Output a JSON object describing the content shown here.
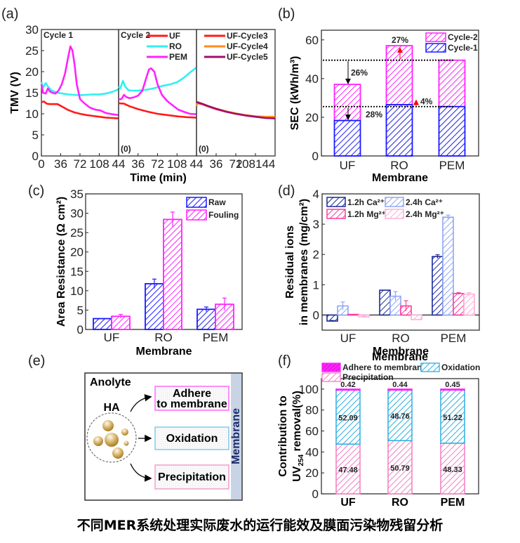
{
  "caption": "不同MER系统处理实际废水的运行能效及膜面污染物残留分析",
  "colors": {
    "uf": "#ff1a1a",
    "ro": "#33f0f0",
    "pem": "#ff22ff",
    "cycle3": "#ff1a1a",
    "cycle4": "#ff8c1a",
    "cycle5": "#a0106a",
    "blue": "#1a1aff",
    "magenta": "#ff22ff",
    "navy": "#1a2a9a",
    "light_blue": "#8fa6f5",
    "pink": "#ff3c9c",
    "light_pink": "#ffb0d8",
    "cyan": "#2eaee0",
    "prec_pink": "#f47cc0",
    "red": "#ff0000"
  },
  "chart_data": [
    {
      "panel": "(a)",
      "type": "line",
      "xlabel": "Time (min)",
      "ylabel": "TMV (V)",
      "ylim": [
        0,
        30
      ],
      "yticks": [
        "0",
        "5",
        "10",
        "15",
        "20",
        "25",
        "30"
      ],
      "subpanels": [
        {
          "title": "Cycle 1",
          "xticks": [
            "0",
            "36",
            "72",
            "108"
          ],
          "xlim": [
            0,
            144
          ],
          "series": [
            {
              "name": "UF",
              "x": [
                0,
                5,
                10,
                15,
                20,
                30,
                40,
                50,
                60,
                72,
                84,
                96,
                108,
                120,
                132,
                144
              ],
              "y": [
                12.8,
                12.9,
                12.4,
                12.3,
                12.3,
                12.3,
                11.6,
                10.9,
                10.4,
                10.0,
                9.7,
                9.5,
                9.3,
                9.1,
                9.0,
                8.9
              ]
            },
            {
              "name": "RO",
              "x": [
                0,
                3,
                8,
                12,
                18,
                24,
                30,
                40,
                50,
                60,
                72,
                84,
                96,
                108,
                120,
                132,
                144
              ],
              "y": [
                17.5,
                16.2,
                17.3,
                16.5,
                15.6,
                15.3,
                15.0,
                14.8,
                14.6,
                14.5,
                14.4,
                14.5,
                14.6,
                14.6,
                14.8,
                15.2,
                15.8
              ]
            },
            {
              "name": "PEM",
              "x": [
                0,
                3,
                8,
                12,
                16,
                20,
                26,
                32,
                38,
                44,
                50,
                54,
                58,
                62,
                66,
                72,
                80,
                90,
                100,
                110,
                120,
                132,
                144
              ],
              "y": [
                17.0,
                15.0,
                14.8,
                16.0,
                15.3,
                15.0,
                14.8,
                15.5,
                17.0,
                19.5,
                23.5,
                26.0,
                25.0,
                21.5,
                17.0,
                13.5,
                12.5,
                11.5,
                11.0,
                10.8,
                10.2,
                9.9,
                9.7
              ]
            }
          ]
        },
        {
          "title": "Cycle 2",
          "xticks": [
            "44",
            "36",
            "72",
            "108"
          ],
          "xlim": [
            0,
            144
          ],
          "annotation": "(0)",
          "series": [
            {
              "name": "UF",
              "x": [
                0,
                10,
                20,
                36,
                54,
                72,
                90,
                108,
                126,
                144
              ],
              "y": [
                12.5,
                12.4,
                11.8,
                11.1,
                10.5,
                10.0,
                9.7,
                9.4,
                9.2,
                9.1
              ]
            },
            {
              "name": "RO",
              "x": [
                0,
                3,
                8,
                12,
                18,
                24,
                36,
                50,
                60,
                72,
                84,
                96,
                108,
                120,
                132,
                144
              ],
              "y": [
                16.5,
                16.0,
                17.8,
                16.5,
                15.6,
                15.5,
                15.5,
                15.7,
                15.9,
                16.3,
                16.7,
                17.0,
                17.5,
                18.5,
                19.8,
                21.0
              ]
            },
            {
              "name": "PEM",
              "x": [
                0,
                3,
                6,
                10,
                14,
                20,
                28,
                36,
                44,
                50,
                56,
                60,
                66,
                72,
                80,
                90,
                100,
                110,
                120,
                132,
                144
              ],
              "y": [
                13.5,
                13.4,
                13.6,
                14.5,
                14.0,
                13.7,
                13.9,
                14.3,
                15.5,
                18.0,
                20.5,
                20.8,
                20.0,
                17.0,
                14.5,
                13.0,
                12.0,
                11.0,
                10.5,
                10.0,
                9.9
              ]
            }
          ],
          "legend": [
            "UF",
            "RO",
            "PEM"
          ]
        },
        {
          "title": "",
          "xticks": [
            "44",
            "36",
            "72",
            "108144"
          ],
          "xlim": [
            0,
            144
          ],
          "annotation": "(0)",
          "series": [
            {
              "name": "UF-Cycle3",
              "x": [
                0,
                10,
                20,
                36,
                54,
                72,
                90,
                108,
                126,
                144
              ],
              "y": [
                12.6,
                12.3,
                11.8,
                11.1,
                10.5,
                10.0,
                9.6,
                9.3,
                9.1,
                8.9
              ]
            },
            {
              "name": "UF-Cycle4",
              "x": [
                0,
                2,
                10,
                20,
                36,
                54,
                72,
                90,
                108,
                126,
                144
              ],
              "y": [
                11.8,
                12.8,
                12.4,
                11.9,
                11.2,
                10.6,
                10.1,
                9.7,
                9.4,
                9.3,
                9.3
              ]
            },
            {
              "name": "UF-Cycle5",
              "x": [
                0,
                10,
                20,
                36,
                54,
                72,
                90,
                108,
                126,
                144
              ],
              "y": [
                12.8,
                12.4,
                11.9,
                11.2,
                10.5,
                10.0,
                9.6,
                9.3,
                9.0,
                8.9
              ]
            }
          ],
          "legend": [
            "UF-Cycle3",
            "UF-Cycle4",
            "UF-Cycle5"
          ]
        }
      ]
    },
    {
      "panel": "(b)",
      "type": "bar",
      "stacked": true,
      "categories": [
        "UF",
        "RO",
        "PEM"
      ],
      "series": [
        {
          "name": "Cycle-1",
          "values": [
            18.3,
            26.5,
            25.5
          ]
        },
        {
          "name": "Cycle-2",
          "values": [
            37.0,
            57.0,
            49.5
          ]
        }
      ],
      "xlabel": "Membrane",
      "ylabel": "SEC (kWh/m³)",
      "ylim": [
        0,
        65
      ],
      "yticks": [
        "0",
        "20",
        "40",
        "60"
      ],
      "reference_lines": [
        49.5,
        25.5
      ],
      "annotations": [
        {
          "text": "26%",
          "color": "black"
        },
        {
          "text": "28%",
          "color": "black"
        },
        {
          "text": "27%",
          "color": "red"
        },
        {
          "text": "4%",
          "color": "red"
        }
      ],
      "legend": [
        "Cycle-2",
        "Cycle-1"
      ]
    },
    {
      "panel": "(c)",
      "type": "bar",
      "categories": [
        "UF",
        "RO",
        "PEM"
      ],
      "series": [
        {
          "name": "Raw",
          "values": [
            2.8,
            11.8,
            5.2
          ],
          "errors": [
            0,
            1.2,
            0.6
          ]
        },
        {
          "name": "Fouling",
          "values": [
            3.4,
            28.4,
            6.5
          ],
          "errors": [
            0.5,
            1.9,
            1.6
          ]
        }
      ],
      "xlabel": "Membrane",
      "ylabel": "Area Resistance (Ω cm²)",
      "ylim": [
        0,
        35
      ],
      "yticks": [
        "0",
        "5",
        "10",
        "15",
        "20",
        "25",
        "30",
        "35"
      ],
      "legend": [
        "Raw",
        "Fouling"
      ]
    },
    {
      "panel": "(d)",
      "type": "bar",
      "categories": [
        "UF",
        "RO",
        "PEM"
      ],
      "series": [
        {
          "name": "1.2h Ca²⁺",
          "values": [
            -0.2,
            0.82,
            1.93
          ],
          "errors": [
            0.02,
            0,
            0.06
          ]
        },
        {
          "name": "2.4h Ca²⁺",
          "values": [
            0.3,
            0.62,
            3.23
          ],
          "errors": [
            0.13,
            0.15,
            0.07
          ]
        },
        {
          "name": "1.2h Mg²⁺",
          "values": [
            0.02,
            0.3,
            0.71
          ],
          "errors": [
            0,
            0.17,
            0.03
          ]
        },
        {
          "name": "2.4h Mg²⁺",
          "values": [
            -0.06,
            -0.15,
            0.69
          ],
          "errors": [
            0.03,
            0,
            0.05
          ]
        }
      ],
      "xlabel": "Membrane",
      "ylabel": "Residual ions in membranes (mg/cm²)",
      "ylabel_lines": [
        "Residual ions",
        "in membranes (mg/cm²)"
      ],
      "ylim": [
        -0.5,
        4
      ],
      "yticks": [
        "0",
        "1",
        "2",
        "3",
        "4"
      ],
      "legend": [
        "1.2h Ca²⁺",
        "2.4h Ca²⁺",
        "1.2h Mg²⁺",
        "2.4h Mg²⁺"
      ]
    },
    {
      "panel": "(f)",
      "type": "bar",
      "stacked": true,
      "categories": [
        "UF",
        "RO",
        "PEM"
      ],
      "series": [
        {
          "name": "Precipitation",
          "values": [
            47.48,
            50.79,
            48.33
          ]
        },
        {
          "name": "Oxidation",
          "values": [
            52.09,
            48.76,
            51.22
          ]
        },
        {
          "name": "Adhere to membrane",
          "values": [
            0.42,
            0.44,
            0.45
          ]
        }
      ],
      "xlabel": "Membrane",
      "ylabel": "Contribution to UV254 removal(%)",
      "ylabel_lines": [
        "Contribution to",
        "UV254 removal(%)"
      ],
      "ylim": [
        0,
        110
      ],
      "yticks": [
        "0",
        "20",
        "40",
        "60",
        "80",
        "100"
      ],
      "legend": [
        "Adhere to membrane",
        "Oxidation",
        "Precipitation"
      ]
    }
  ],
  "diagram_e": {
    "panel": "(e)",
    "title": "Anolyte",
    "source": "HA",
    "pathways": [
      "Adhere to membrane",
      "Oxidation",
      "Precipitation"
    ],
    "pathway_lines": [
      [
        "Adhere",
        "to membrane"
      ],
      [
        "Oxidation"
      ],
      [
        "Precipitation"
      ]
    ],
    "membrane_label": "Membrane"
  },
  "panel_labels": [
    "(a)",
    "(b)",
    "(c)",
    "(d)",
    "(e)",
    "(f)"
  ]
}
